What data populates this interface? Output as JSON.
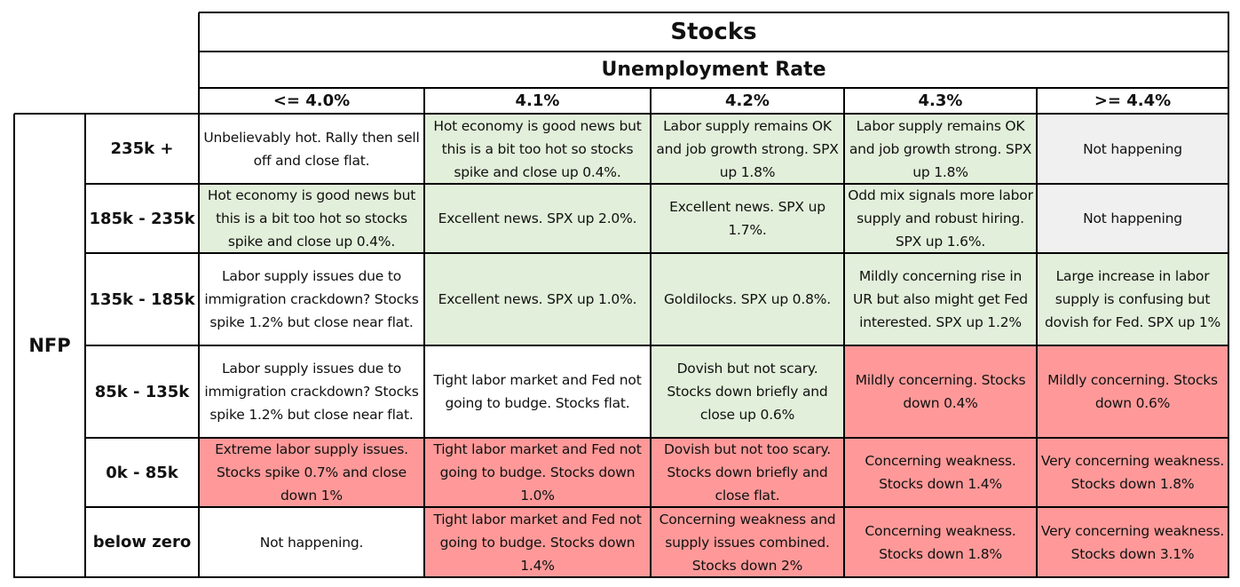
{
  "title": "Stocks",
  "subtitle": "Unemployment Rate",
  "row_group_label": "NFP",
  "columns": [
    "<= 4.0%",
    "4.1%",
    "4.2%",
    "4.3%",
    ">= 4.4%"
  ],
  "rows": [
    {
      "label": "235k +",
      "cells": [
        {
          "text": "Unbelievably hot. Rally then sell off and close flat.",
          "tone": "white"
        },
        {
          "text": "Hot economy is good news but this is a bit too hot so stocks spike and close up 0.4%.",
          "tone": "green"
        },
        {
          "text": "Labor supply remains OK and job growth strong. SPX up 1.8%",
          "tone": "green"
        },
        {
          "text": "Labor supply remains OK and job growth strong. SPX up 1.8%",
          "tone": "green"
        },
        {
          "text": "Not happening",
          "tone": "grey"
        }
      ]
    },
    {
      "label": "185k - 235k",
      "cells": [
        {
          "text": "Hot economy is good news but this is a bit too hot so stocks spike and close up 0.4%.",
          "tone": "green"
        },
        {
          "text": "Excellent news. SPX up 2.0%.",
          "tone": "green"
        },
        {
          "text": "Excellent news. SPX up 1.7%.",
          "tone": "green"
        },
        {
          "text": "Odd mix signals more labor supply and robust hiring. SPX up 1.6%.",
          "tone": "green"
        },
        {
          "text": "Not happening",
          "tone": "grey"
        }
      ]
    },
    {
      "label": "135k - 185k",
      "cells": [
        {
          "text": "Labor supply issues due to immigration crackdown? Stocks spike 1.2% but close near flat.",
          "tone": "white"
        },
        {
          "text": "Excellent news. SPX up 1.0%.",
          "tone": "green"
        },
        {
          "text": "Goldilocks. SPX up 0.8%.",
          "tone": "green"
        },
        {
          "text": "Mildly concerning rise in UR but also might get Fed interested. SPX up 1.2%",
          "tone": "green"
        },
        {
          "text": "Large increase in labor supply is confusing but dovish for Fed. SPX up 1%",
          "tone": "green"
        }
      ]
    },
    {
      "label": "85k - 135k",
      "cells": [
        {
          "text": "Labor supply issues due to immigration crackdown? Stocks spike 1.2% but close near flat.",
          "tone": "white"
        },
        {
          "text": "Tight labor market and Fed not going to budge. Stocks flat.",
          "tone": "white"
        },
        {
          "text": "Dovish but not scary. Stocks down briefly and close up 0.6%",
          "tone": "green"
        },
        {
          "text": "Mildly concerning. Stocks down 0.4%",
          "tone": "red"
        },
        {
          "text": "Mildly concerning. Stocks down 0.6%",
          "tone": "red"
        }
      ]
    },
    {
      "label": "0k - 85k",
      "cells": [
        {
          "text": "Extreme labor supply issues. Stocks spike 0.7% and close down 1%",
          "tone": "red"
        },
        {
          "text": "Tight labor market and Fed not going to budge. Stocks down 1.0%",
          "tone": "red"
        },
        {
          "text": "Dovish but not too scary. Stocks down briefly and close flat.",
          "tone": "red"
        },
        {
          "text": "Concerning weakness. Stocks down 1.4%",
          "tone": "red"
        },
        {
          "text": "Very concerning weakness. Stocks down 1.8%",
          "tone": "red"
        }
      ]
    },
    {
      "label": "below zero",
      "cells": [
        {
          "text": "Not happening.",
          "tone": "white"
        },
        {
          "text": "Tight labor market and Fed not going to budge. Stocks down 1.4%",
          "tone": "red"
        },
        {
          "text": "Concerning weakness and supply issues combined. Stocks down 2%",
          "tone": "red"
        },
        {
          "text": "Concerning weakness. Stocks down 1.8%",
          "tone": "red"
        },
        {
          "text": "Very concerning weakness. Stocks down 3.1%",
          "tone": "red"
        }
      ]
    }
  ],
  "colors": {
    "green": "#e2efda",
    "red": "#ff9999",
    "grey": "#f0f0f0"
  }
}
